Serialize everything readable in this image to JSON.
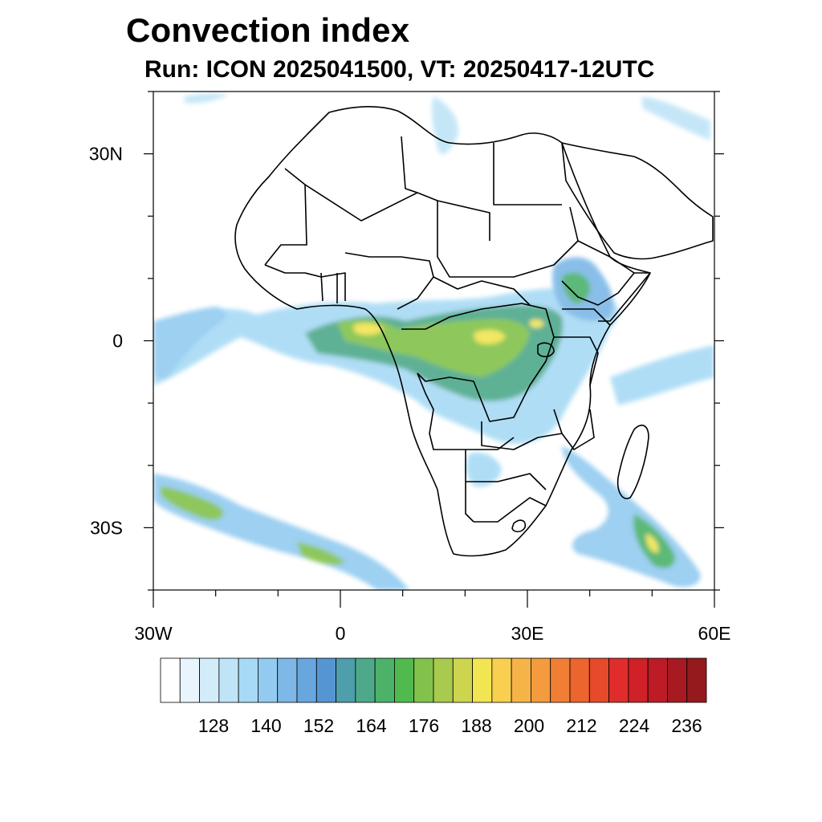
{
  "title": "Convection index",
  "subtitle": "Run: ICON 2025041500,  VT: 20250417-12UTC",
  "axes": {
    "lat_labels": [
      {
        "text": "30N",
        "lat": 30
      },
      {
        "text": "0",
        "lat": 0
      },
      {
        "text": "30S",
        "lat": -30
      }
    ],
    "lon_labels": [
      {
        "text": "30W",
        "lon": -30
      },
      {
        "text": "0",
        "lon": 0
      },
      {
        "text": "30E",
        "lon": 30
      },
      {
        "text": "60E",
        "lon": 60
      }
    ],
    "lon_range": [
      -30,
      60
    ],
    "lat_range": [
      -40,
      40
    ]
  },
  "colorbar": {
    "labels": [
      "128",
      "140",
      "152",
      "164",
      "176",
      "188",
      "200",
      "212",
      "224",
      "236"
    ],
    "colors": [
      "#ffffff",
      "#e9f5fd",
      "#d3ecfa",
      "#bfe4f7",
      "#a7daf5",
      "#93cbf0",
      "#7db8e6",
      "#68a7dd",
      "#5596d2",
      "#4e9eab",
      "#4da98a",
      "#4cb26a",
      "#51ba4e",
      "#82c24c",
      "#a8ca4e",
      "#cdd54f",
      "#f2e552",
      "#f8cf4e",
      "#f6b348",
      "#f49b3e",
      "#f07f35",
      "#ec642e",
      "#e7492b",
      "#e02d2b",
      "#cf2127",
      "#bd1b26",
      "#a81a22",
      "#951a1e"
    ]
  }
}
